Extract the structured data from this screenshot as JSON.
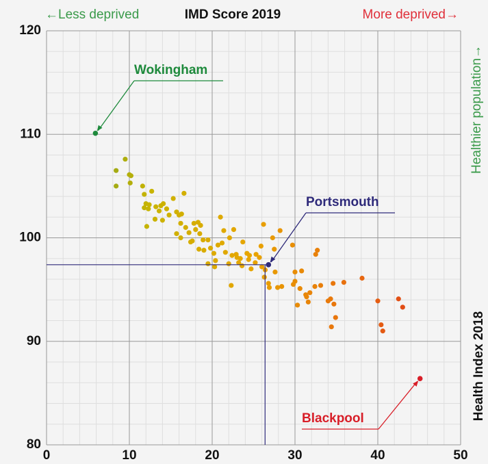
{
  "chart_data": {
    "type": "scatter",
    "title": "IMD Score 2019",
    "x_left_label": "←Less deprived",
    "x_right_label": "More deprived→",
    "y_label": "Health Index 2018",
    "y_direction_label": "Healthier population→",
    "xlim": [
      0,
      50
    ],
    "xticks": [
      0,
      10,
      20,
      30,
      40,
      50
    ],
    "ylim": [
      80,
      120
    ],
    "yticks": [
      80,
      90,
      100,
      110,
      120
    ],
    "grid": true,
    "colorscale": [
      "#5a9a3a",
      "#c9b400",
      "#e8a400",
      "#e86a10",
      "#d8281c"
    ],
    "x": [
      8.4,
      8.4,
      9.5,
      10,
      10.2,
      10.1,
      11.6,
      11.8,
      12,
      11.8,
      12.3,
      12.7,
      12.4,
      13.2,
      13.6,
      13.8,
      14.1,
      14.5,
      14,
      14.8,
      15.3,
      15.7,
      16,
      16.3,
      16.6,
      16.2,
      15.7,
      16.2,
      16.8,
      17.2,
      17.4,
      17.8,
      18,
      18.3,
      18.6,
      18.5,
      18.9,
      18.4,
      19,
      19.5,
      19.8,
      20.2,
      20.7,
      20.4,
      21,
      21.4,
      21.2,
      21.6,
      22,
      22.1,
      22.6,
      22.4,
      22.9,
      23.2,
      23.4,
      23.7,
      23.6,
      24.2,
      24.5,
      24.7,
      25.2,
      25.3,
      25.7,
      26.2,
      25.9,
      26,
      26.4,
      26.3,
      26.9,
      27.3,
      27.5,
      27.6,
      27.9,
      28.2,
      28.4,
      29.7,
      30,
      30.3,
      30.6,
      30.8,
      31.3,
      31.6,
      31.4,
      31.8,
      32.4,
      32.5,
      32.7,
      33.1,
      34,
      34.3,
      34.7,
      34.6,
      34.4,
      34.9,
      35.9,
      38.1,
      40,
      40.4,
      40.6,
      42.5,
      43,
      30,
      29.8,
      26.8,
      24.4,
      22.3,
      23,
      19.5,
      20.3,
      17.6,
      13.1,
      12.1
    ],
    "y": [
      106.5,
      105,
      107.6,
      106.1,
      106,
      105.3,
      105,
      104.2,
      103.3,
      102.9,
      102.8,
      104.5,
      103.2,
      103,
      102.6,
      103.1,
      103.3,
      102.8,
      101.7,
      102.2,
      103.8,
      102.5,
      102.2,
      102.3,
      104.3,
      101.4,
      100.4,
      100,
      101,
      100.5,
      99.6,
      101.4,
      100.8,
      101.5,
      101.2,
      100.4,
      99.8,
      98.9,
      98.8,
      99.8,
      99,
      98.5,
      99.3,
      97.8,
      102,
      100.7,
      99.5,
      98.6,
      97.5,
      100,
      100.8,
      98.3,
      98.4,
      97.6,
      98,
      99.6,
      97.3,
      98.5,
      98.3,
      97,
      97.6,
      98.4,
      98.1,
      101.3,
      99.2,
      97.2,
      96.9,
      96.2,
      95.2,
      100,
      98.9,
      96.7,
      95.2,
      100.7,
      95.3,
      99.3,
      96.7,
      93.5,
      95.1,
      96.8,
      94.5,
      93.8,
      94.3,
      94.7,
      95.3,
      98.4,
      98.8,
      95.4,
      93.9,
      94.1,
      93.6,
      95.6,
      91.4,
      92.3,
      95.7,
      96.1,
      93.9,
      91.6,
      91,
      94.1,
      93.3,
      95.8,
      95.5,
      95.6,
      97.9,
      95.4,
      98.1,
      97.5,
      97.2,
      99.7,
      101.8,
      101.1
    ],
    "highlights": [
      {
        "label": "Wokingham",
        "color": "#1e8a3c",
        "x": 5.9,
        "y": 110.1
      },
      {
        "label": "Portsmouth",
        "color": "#2e2a7a",
        "x": 26.8,
        "y": 97.4
      },
      {
        "label": "Blackpool",
        "color": "#d81e28",
        "x": 45.1,
        "y": 86.4
      }
    ]
  }
}
